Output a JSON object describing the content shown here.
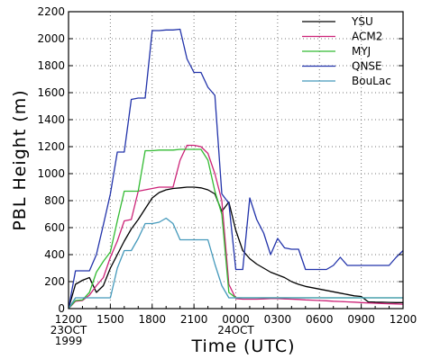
{
  "chart_data": {
    "type": "line",
    "title": "",
    "xlabel": "Time (UTC)",
    "ylabel": "PBL Height (m)",
    "xlim": [
      0,
      24
    ],
    "ylim": [
      0,
      2200
    ],
    "grid": true,
    "legend_position": "top-right",
    "x_ticks": [
      {
        "x": 0,
        "label": "1200",
        "sublabels": [
          "23OCT",
          "1999"
        ]
      },
      {
        "x": 3,
        "label": "1500",
        "sublabels": []
      },
      {
        "x": 6,
        "label": "1800",
        "sublabels": []
      },
      {
        "x": 9,
        "label": "2100",
        "sublabels": []
      },
      {
        "x": 12,
        "label": "0000",
        "sublabels": [
          "24OCT"
        ]
      },
      {
        "x": 15,
        "label": "0300",
        "sublabels": []
      },
      {
        "x": 18,
        "label": "0600",
        "sublabels": []
      },
      {
        "x": 21,
        "label": "0900",
        "sublabels": []
      },
      {
        "x": 24,
        "label": "1200",
        "sublabels": []
      }
    ],
    "y_ticks": [
      0,
      200,
      400,
      600,
      800,
      1000,
      1200,
      1400,
      1600,
      1800,
      2000,
      2200
    ],
    "series": [
      {
        "name": "YSU",
        "color": "#000000",
        "points": [
          [
            0,
            0
          ],
          [
            0.5,
            180
          ],
          [
            1,
            210
          ],
          [
            1.5,
            230
          ],
          [
            2,
            120
          ],
          [
            2.5,
            170
          ],
          [
            3,
            300
          ],
          [
            3.5,
            400
          ],
          [
            4,
            500
          ],
          [
            4.5,
            590
          ],
          [
            5,
            660
          ],
          [
            5.5,
            740
          ],
          [
            6,
            820
          ],
          [
            6.5,
            860
          ],
          [
            7,
            880
          ],
          [
            7.5,
            890
          ],
          [
            8,
            895
          ],
          [
            8.5,
            900
          ],
          [
            9,
            900
          ],
          [
            9.5,
            895
          ],
          [
            10,
            880
          ],
          [
            10.5,
            850
          ],
          [
            11,
            720
          ],
          [
            11.5,
            790
          ],
          [
            12,
            580
          ],
          [
            12.5,
            430
          ],
          [
            13,
            370
          ],
          [
            13.5,
            330
          ],
          [
            14,
            300
          ],
          [
            14.5,
            270
          ],
          [
            15,
            250
          ],
          [
            15.5,
            230
          ],
          [
            16,
            200
          ],
          [
            16.5,
            180
          ],
          [
            17,
            165
          ],
          [
            17.5,
            155
          ],
          [
            18,
            145
          ],
          [
            18.5,
            135
          ],
          [
            19,
            125
          ],
          [
            19.5,
            115
          ],
          [
            20,
            105
          ],
          [
            20.5,
            95
          ],
          [
            21,
            90
          ],
          [
            21.5,
            50
          ],
          [
            22,
            48
          ],
          [
            22.5,
            47
          ],
          [
            23,
            46
          ],
          [
            23.5,
            45
          ],
          [
            24,
            45
          ]
        ]
      },
      {
        "name": "ACM2",
        "color": "#cc2277",
        "points": [
          [
            0,
            0
          ],
          [
            0.5,
            55
          ],
          [
            1,
            60
          ],
          [
            1.5,
            100
          ],
          [
            2,
            170
          ],
          [
            2.5,
            230
          ],
          [
            3,
            380
          ],
          [
            3.5,
            500
          ],
          [
            4,
            650
          ],
          [
            4.5,
            660
          ],
          [
            5,
            870
          ],
          [
            5.5,
            880
          ],
          [
            6,
            890
          ],
          [
            6.5,
            900
          ],
          [
            7,
            900
          ],
          [
            7.5,
            900
          ],
          [
            8,
            1100
          ],
          [
            8.5,
            1210
          ],
          [
            9,
            1210
          ],
          [
            9.5,
            1200
          ],
          [
            10,
            1150
          ],
          [
            10.5,
            1000
          ],
          [
            11,
            800
          ],
          [
            11.5,
            180
          ],
          [
            12,
            75
          ],
          [
            12.5,
            70
          ],
          [
            13,
            70
          ],
          [
            13.5,
            70
          ],
          [
            14,
            72
          ],
          [
            14.5,
            75
          ],
          [
            15,
            75
          ],
          [
            15.5,
            72
          ],
          [
            16,
            70
          ],
          [
            16.5,
            68
          ],
          [
            17,
            65
          ],
          [
            17.5,
            63
          ],
          [
            18,
            60
          ],
          [
            18.5,
            58
          ],
          [
            19,
            55
          ],
          [
            19.5,
            53
          ],
          [
            20,
            50
          ],
          [
            20.5,
            48
          ],
          [
            21,
            45
          ],
          [
            21.5,
            42
          ],
          [
            22,
            40
          ],
          [
            22.5,
            38
          ],
          [
            23,
            36
          ],
          [
            23.5,
            35
          ],
          [
            24,
            33
          ]
        ]
      },
      {
        "name": "MYJ",
        "color": "#33bb33",
        "points": [
          [
            0,
            0
          ],
          [
            0.5,
            60
          ],
          [
            1,
            65
          ],
          [
            1.5,
            120
          ],
          [
            2,
            270
          ],
          [
            2.5,
            350
          ],
          [
            3,
            420
          ],
          [
            3.5,
            650
          ],
          [
            4,
            870
          ],
          [
            4.5,
            870
          ],
          [
            5,
            870
          ],
          [
            5.5,
            1170
          ],
          [
            6,
            1170
          ],
          [
            6.5,
            1175
          ],
          [
            7,
            1175
          ],
          [
            7.5,
            1175
          ],
          [
            8,
            1180
          ],
          [
            8.5,
            1180
          ],
          [
            9,
            1180
          ],
          [
            9.5,
            1180
          ],
          [
            10,
            1100
          ],
          [
            10.5,
            870
          ],
          [
            11,
            700
          ],
          [
            11.5,
            120
          ],
          [
            12,
            80
          ],
          [
            12.5,
            80
          ],
          [
            13,
            80
          ],
          [
            14,
            80
          ],
          [
            15,
            80
          ],
          [
            16,
            80
          ],
          [
            17,
            80
          ],
          [
            18,
            80
          ],
          [
            19,
            80
          ],
          [
            20,
            80
          ],
          [
            21,
            80
          ],
          [
            22,
            80
          ],
          [
            23,
            80
          ],
          [
            24,
            80
          ]
        ]
      },
      {
        "name": "QNSE",
        "color": "#2233aa",
        "points": [
          [
            0,
            0
          ],
          [
            0.5,
            280
          ],
          [
            1,
            280
          ],
          [
            1.5,
            280
          ],
          [
            2,
            400
          ],
          [
            2.5,
            620
          ],
          [
            3,
            850
          ],
          [
            3.5,
            1160
          ],
          [
            4,
            1160
          ],
          [
            4.5,
            1550
          ],
          [
            5,
            1560
          ],
          [
            5.5,
            1560
          ],
          [
            6,
            2060
          ],
          [
            6.5,
            2060
          ],
          [
            7,
            2065
          ],
          [
            7.5,
            2065
          ],
          [
            8,
            2070
          ],
          [
            8.5,
            1850
          ],
          [
            9,
            1750
          ],
          [
            9.5,
            1750
          ],
          [
            10,
            1640
          ],
          [
            10.5,
            1580
          ],
          [
            11,
            850
          ],
          [
            11.5,
            780
          ],
          [
            12,
            290
          ],
          [
            12.5,
            290
          ],
          [
            13,
            820
          ],
          [
            13.5,
            660
          ],
          [
            14,
            560
          ],
          [
            14.5,
            400
          ],
          [
            15,
            520
          ],
          [
            15.5,
            450
          ],
          [
            16,
            440
          ],
          [
            16.5,
            440
          ],
          [
            17,
            290
          ],
          [
            17.5,
            290
          ],
          [
            18,
            290
          ],
          [
            18.5,
            290
          ],
          [
            19,
            320
          ],
          [
            19.5,
            380
          ],
          [
            20,
            320
          ],
          [
            20.5,
            320
          ],
          [
            21,
            320
          ],
          [
            22,
            320
          ],
          [
            23,
            320
          ],
          [
            23.5,
            380
          ],
          [
            24,
            430
          ]
        ]
      },
      {
        "name": "BouLac",
        "color": "#4499bb",
        "points": [
          [
            0,
            0
          ],
          [
            0.5,
            80
          ],
          [
            1,
            80
          ],
          [
            1.5,
            80
          ],
          [
            2,
            80
          ],
          [
            2.5,
            80
          ],
          [
            3,
            80
          ],
          [
            3.5,
            300
          ],
          [
            4,
            430
          ],
          [
            4.5,
            430
          ],
          [
            5,
            520
          ],
          [
            5.5,
            630
          ],
          [
            6,
            630
          ],
          [
            6.5,
            640
          ],
          [
            7,
            670
          ],
          [
            7.5,
            630
          ],
          [
            8,
            510
          ],
          [
            8.5,
            510
          ],
          [
            9,
            510
          ],
          [
            9.5,
            510
          ],
          [
            10,
            510
          ],
          [
            10.5,
            330
          ],
          [
            11,
            170
          ],
          [
            11.5,
            80
          ],
          [
            12,
            80
          ],
          [
            13,
            80
          ],
          [
            14,
            80
          ],
          [
            15,
            80
          ],
          [
            16,
            80
          ],
          [
            17,
            80
          ],
          [
            18,
            80
          ],
          [
            19,
            80
          ],
          [
            20,
            80
          ],
          [
            21,
            80
          ],
          [
            22,
            80
          ],
          [
            23,
            80
          ],
          [
            24,
            80
          ]
        ]
      }
    ]
  }
}
